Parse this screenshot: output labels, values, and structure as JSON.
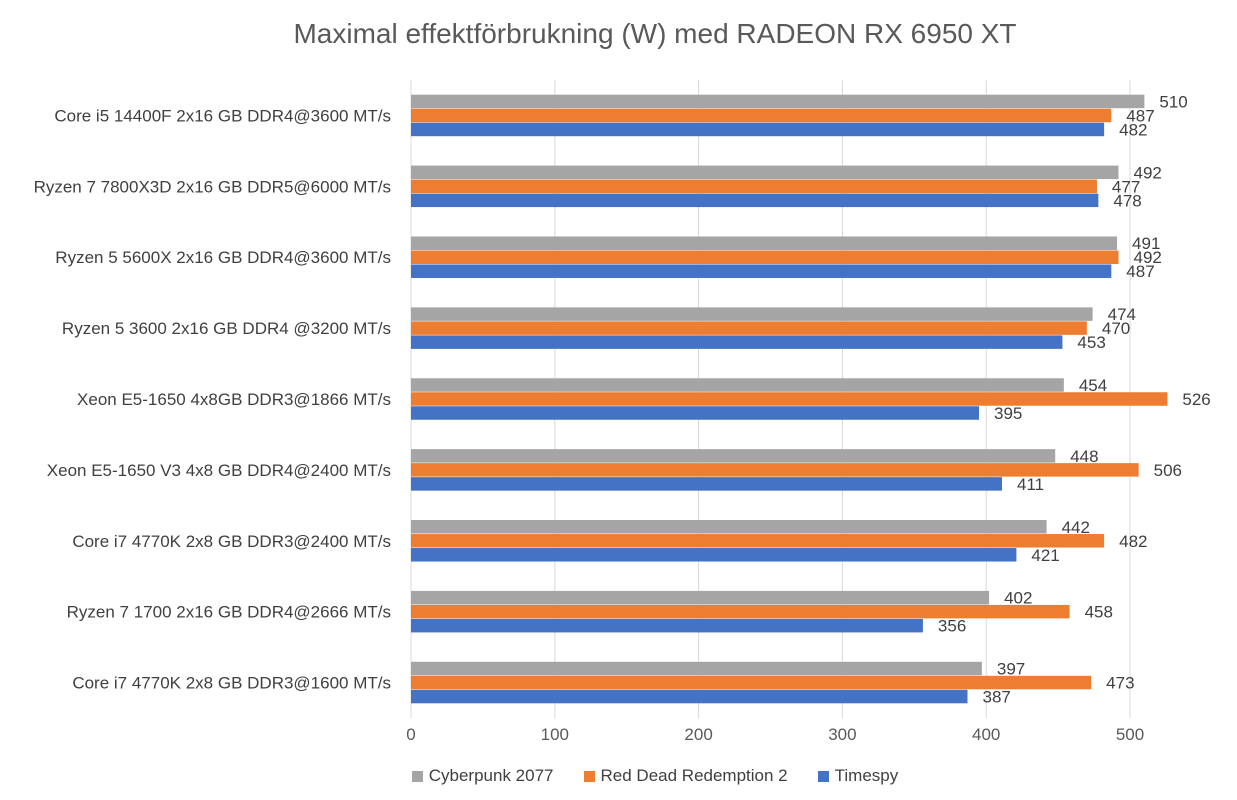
{
  "chart_data": {
    "type": "bar",
    "orientation": "horizontal",
    "title": "Maximal effektförbrukning (W) med RADEON RX 6950 XT",
    "xlabel": "",
    "ylabel": "",
    "xlim": [
      0,
      526
    ],
    "xticks": [
      0,
      100,
      200,
      300,
      400,
      500
    ],
    "grid": true,
    "legend_position": "bottom",
    "categories": [
      "Core i5 14400F 2x16 GB DDR4@3600 MT/s",
      "Ryzen 7 7800X3D 2x16 GB DDR5@6000 MT/s",
      "Ryzen 5 5600X 2x16 GB DDR4@3600 MT/s",
      "Ryzen 5 3600 2x16 GB DDR4 @3200 MT/s",
      "Xeon E5-1650 4x8GB DDR3@1866 MT/s",
      "Xeon E5-1650 V3 4x8 GB DDR4@2400 MT/s",
      "Core i7 4770K 2x8 GB DDR3@2400 MT/s",
      "Ryzen 7 1700 2x16 GB DDR4@2666 MT/s",
      "Core i7 4770K 2x8 GB DDR3@1600 MT/s"
    ],
    "series": [
      {
        "name": "Cyberpunk 2077",
        "color": "#a5a5a5",
        "values": [
          510,
          492,
          491,
          474,
          454,
          448,
          442,
          402,
          397
        ]
      },
      {
        "name": "Red Dead Redemption 2",
        "color": "#ed7d31",
        "values": [
          487,
          477,
          492,
          470,
          526,
          506,
          482,
          458,
          473
        ]
      },
      {
        "name": "Timespy",
        "color": "#4472c4",
        "values": [
          482,
          478,
          487,
          453,
          395,
          411,
          421,
          356,
          387
        ]
      }
    ]
  }
}
